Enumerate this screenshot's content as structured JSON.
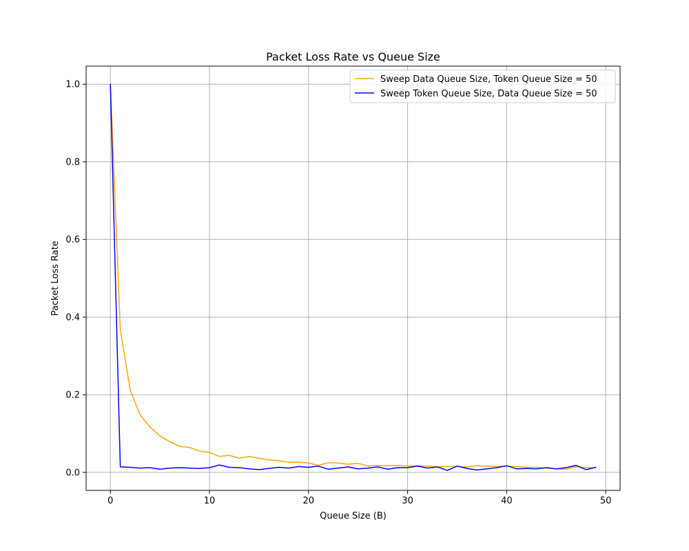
{
  "chart_data": {
    "type": "line",
    "title": "Packet Loss Rate vs Queue Size",
    "xlabel": "Queue Size (B)",
    "ylabel": "Packet Loss Rate",
    "xlim": [
      -2.45,
      51.45
    ],
    "ylim": [
      -0.0465,
      1.0465
    ],
    "xticks": [
      0,
      10,
      20,
      30,
      40,
      50
    ],
    "xtick_labels": [
      "0",
      "10",
      "20",
      "30",
      "40",
      "50"
    ],
    "yticks": [
      0.0,
      0.2,
      0.4,
      0.6,
      0.8,
      1.0
    ],
    "ytick_labels": [
      "0.0",
      "0.2",
      "0.4",
      "0.6",
      "0.8",
      "1.0"
    ],
    "grid": true,
    "legend_position": "upper-right",
    "x": [
      0,
      1,
      2,
      3,
      4,
      5,
      6,
      7,
      8,
      9,
      10,
      11,
      12,
      13,
      14,
      15,
      16,
      17,
      18,
      19,
      20,
      21,
      22,
      23,
      24,
      25,
      26,
      27,
      28,
      29,
      30,
      31,
      32,
      33,
      34,
      35,
      36,
      37,
      38,
      39,
      40,
      41,
      42,
      43,
      44,
      45,
      46,
      47,
      48,
      49
    ],
    "series": [
      {
        "name": "Sweep Data Queue Size, Token Queue Size = 50",
        "color": "#ffa500",
        "values": [
          1.0,
          0.368,
          0.212,
          0.148,
          0.117,
          0.094,
          0.079,
          0.067,
          0.064,
          0.055,
          0.051,
          0.041,
          0.044,
          0.036,
          0.041,
          0.036,
          0.032,
          0.03,
          0.026,
          0.026,
          0.024,
          0.018,
          0.025,
          0.024,
          0.021,
          0.023,
          0.016,
          0.018,
          0.017,
          0.018,
          0.016,
          0.017,
          0.016,
          0.014,
          0.015,
          0.015,
          0.014,
          0.017,
          0.016,
          0.015,
          0.016,
          0.015,
          0.013,
          0.013,
          0.011,
          0.009,
          0.008,
          0.015,
          0.012,
          0.012
        ]
      },
      {
        "name": "Sweep Token Queue Size, Data Queue Size = 50",
        "color": "#0000ff",
        "values": [
          1.0,
          0.014,
          0.013,
          0.011,
          0.012,
          0.008,
          0.011,
          0.012,
          0.011,
          0.01,
          0.012,
          0.019,
          0.013,
          0.012,
          0.009,
          0.007,
          0.01,
          0.013,
          0.011,
          0.015,
          0.013,
          0.016,
          0.008,
          0.011,
          0.014,
          0.009,
          0.011,
          0.014,
          0.008,
          0.012,
          0.012,
          0.016,
          0.011,
          0.014,
          0.005,
          0.016,
          0.01,
          0.006,
          0.009,
          0.012,
          0.017,
          0.009,
          0.01,
          0.009,
          0.012,
          0.009,
          0.012,
          0.018,
          0.007,
          0.013
        ]
      }
    ]
  }
}
